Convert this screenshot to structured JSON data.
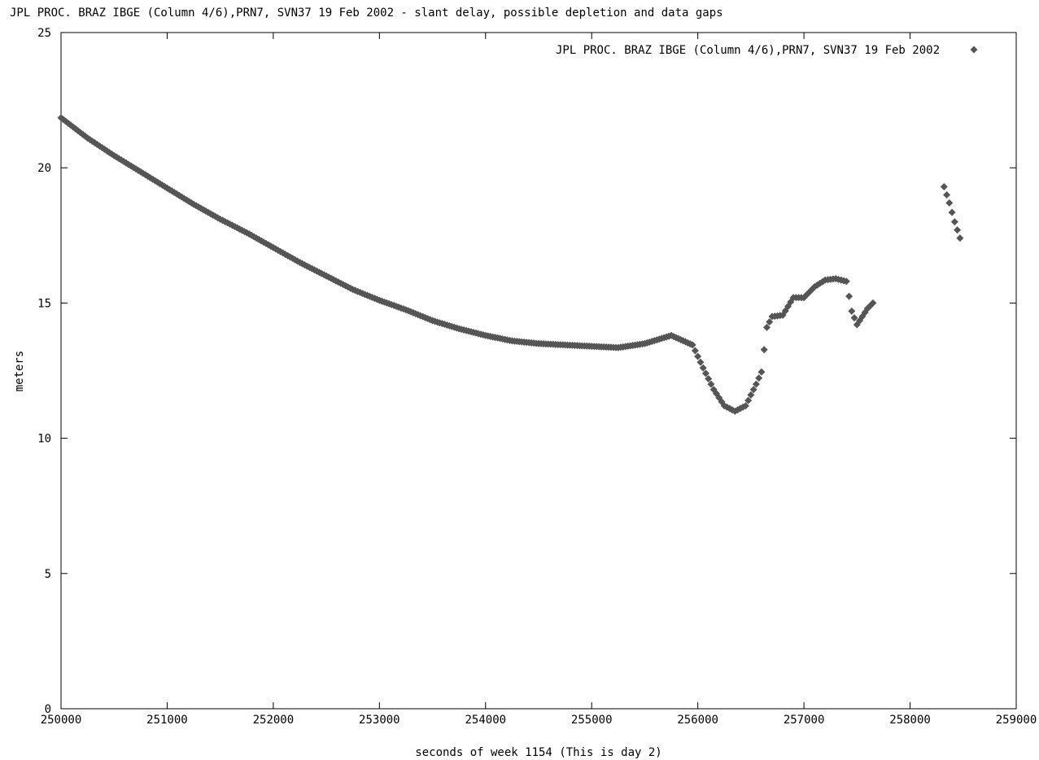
{
  "chart_data": {
    "type": "scatter",
    "title": "JPL PROC. BRAZ IBGE (Column 4/6),PRN7, SVN37 19 Feb 2002 - slant delay, possible depletion and data gaps",
    "xlabel": "seconds of week 1154 (This is day 2)",
    "ylabel": "meters",
    "xlim": [
      250000,
      259000
    ],
    "ylim": [
      0,
      25
    ],
    "x_ticks": [
      "250000",
      "251000",
      "252000",
      "253000",
      "254000",
      "255000",
      "256000",
      "257000",
      "258000",
      "259000"
    ],
    "y_ticks": [
      "0",
      "5",
      "10",
      "15",
      "20",
      "25"
    ],
    "grid": false,
    "legend_position": "top-right",
    "marker": "diamond",
    "marker_color": "#555555",
    "series": [
      {
        "name": "JPL PROC. BRAZ IBGE (Column 4/6),PRN7, SVN37 19 Feb 2002",
        "x": [
          250000,
          250250,
          250500,
          250750,
          251000,
          251250,
          251500,
          251750,
          252000,
          252250,
          252500,
          252750,
          253000,
          253250,
          253500,
          253750,
          254000,
          254250,
          254500,
          254750,
          255000,
          255250,
          255500,
          255750,
          255950,
          256050,
          256150,
          256250,
          256350,
          256450,
          256500,
          256550,
          256600,
          256650,
          256700,
          256800,
          256900,
          257000,
          257100,
          257200,
          257300,
          257400,
          257450,
          257500,
          257550,
          257600,
          257650,
          258320,
          258370,
          258420,
          258470
        ],
        "y": [
          21.85,
          21.1,
          20.45,
          19.85,
          19.25,
          18.65,
          18.1,
          17.6,
          17.05,
          16.5,
          16.0,
          15.5,
          15.1,
          14.75,
          14.35,
          14.05,
          13.8,
          13.6,
          13.5,
          13.45,
          13.4,
          13.35,
          13.5,
          13.8,
          13.45,
          12.6,
          11.8,
          11.2,
          11.0,
          11.2,
          11.6,
          12.0,
          12.45,
          14.1,
          14.5,
          14.55,
          15.2,
          15.2,
          15.6,
          15.85,
          15.9,
          15.8,
          14.7,
          14.2,
          14.5,
          14.8,
          15.0,
          19.3,
          18.7,
          18.0,
          17.4
        ]
      }
    ]
  }
}
